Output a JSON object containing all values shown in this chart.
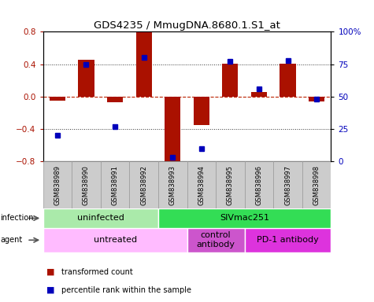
{
  "title": "GDS4235 / MmugDNA.8680.1.S1_at",
  "samples": [
    "GSM838989",
    "GSM838990",
    "GSM838991",
    "GSM838992",
    "GSM838993",
    "GSM838994",
    "GSM838995",
    "GSM838996",
    "GSM838997",
    "GSM838998"
  ],
  "transformed_count": [
    -0.05,
    0.45,
    -0.07,
    0.79,
    -0.82,
    -0.35,
    0.41,
    0.06,
    0.41,
    -0.06
  ],
  "percentile_rank": [
    20,
    75,
    27,
    80,
    3,
    10,
    77,
    56,
    78,
    48
  ],
  "infection_groups": [
    {
      "label": "uninfected",
      "start": 0,
      "end": 3,
      "color": "#aaeaaa"
    },
    {
      "label": "SIVmac251",
      "start": 4,
      "end": 9,
      "color": "#33dd55"
    }
  ],
  "agent_groups": [
    {
      "label": "untreated",
      "start": 0,
      "end": 4,
      "color": "#ffbbff"
    },
    {
      "label": "control\nantibody",
      "start": 5,
      "end": 6,
      "color": "#cc55cc"
    },
    {
      "label": "PD-1 antibody",
      "start": 7,
      "end": 9,
      "color": "#dd33dd"
    }
  ],
  "ylim": [
    -0.8,
    0.8
  ],
  "yticks_left": [
    -0.8,
    -0.4,
    0.0,
    0.4,
    0.8
  ],
  "yticks_right": [
    0,
    25,
    50,
    75,
    100
  ],
  "bar_color": "#aa1100",
  "dot_color": "#0000bb",
  "hline_color": "#bb2200",
  "grid_color": "#333333",
  "bg_color": "#ffffff",
  "infection_label_color": "#000000",
  "agent_label_color": "#000000",
  "sample_box_color": "#cccccc",
  "sample_box_edge": "#999999"
}
